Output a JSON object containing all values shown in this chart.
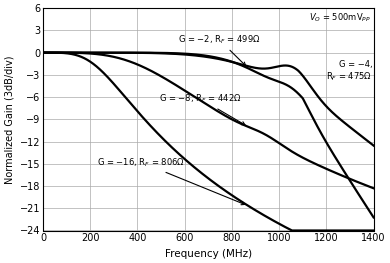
{
  "title": "",
  "xlabel": "Frequency (MHz)",
  "ylabel": "Normalized Gain (3dB/div)",
  "xlim": [
    0,
    1400
  ],
  "ylim": [
    -24,
    6
  ],
  "yticks": [
    6,
    3,
    0,
    -3,
    -6,
    -9,
    -12,
    -15,
    -18,
    -21,
    -24
  ],
  "xticks": [
    0,
    200,
    400,
    600,
    800,
    1000,
    1200,
    1400
  ],
  "background_color": "#ffffff",
  "grid_color": "#aaaaaa",
  "lw": 1.6,
  "anno_fontsize": 6.0,
  "axis_fontsize": 7.5,
  "tick_fontsize": 7.0
}
